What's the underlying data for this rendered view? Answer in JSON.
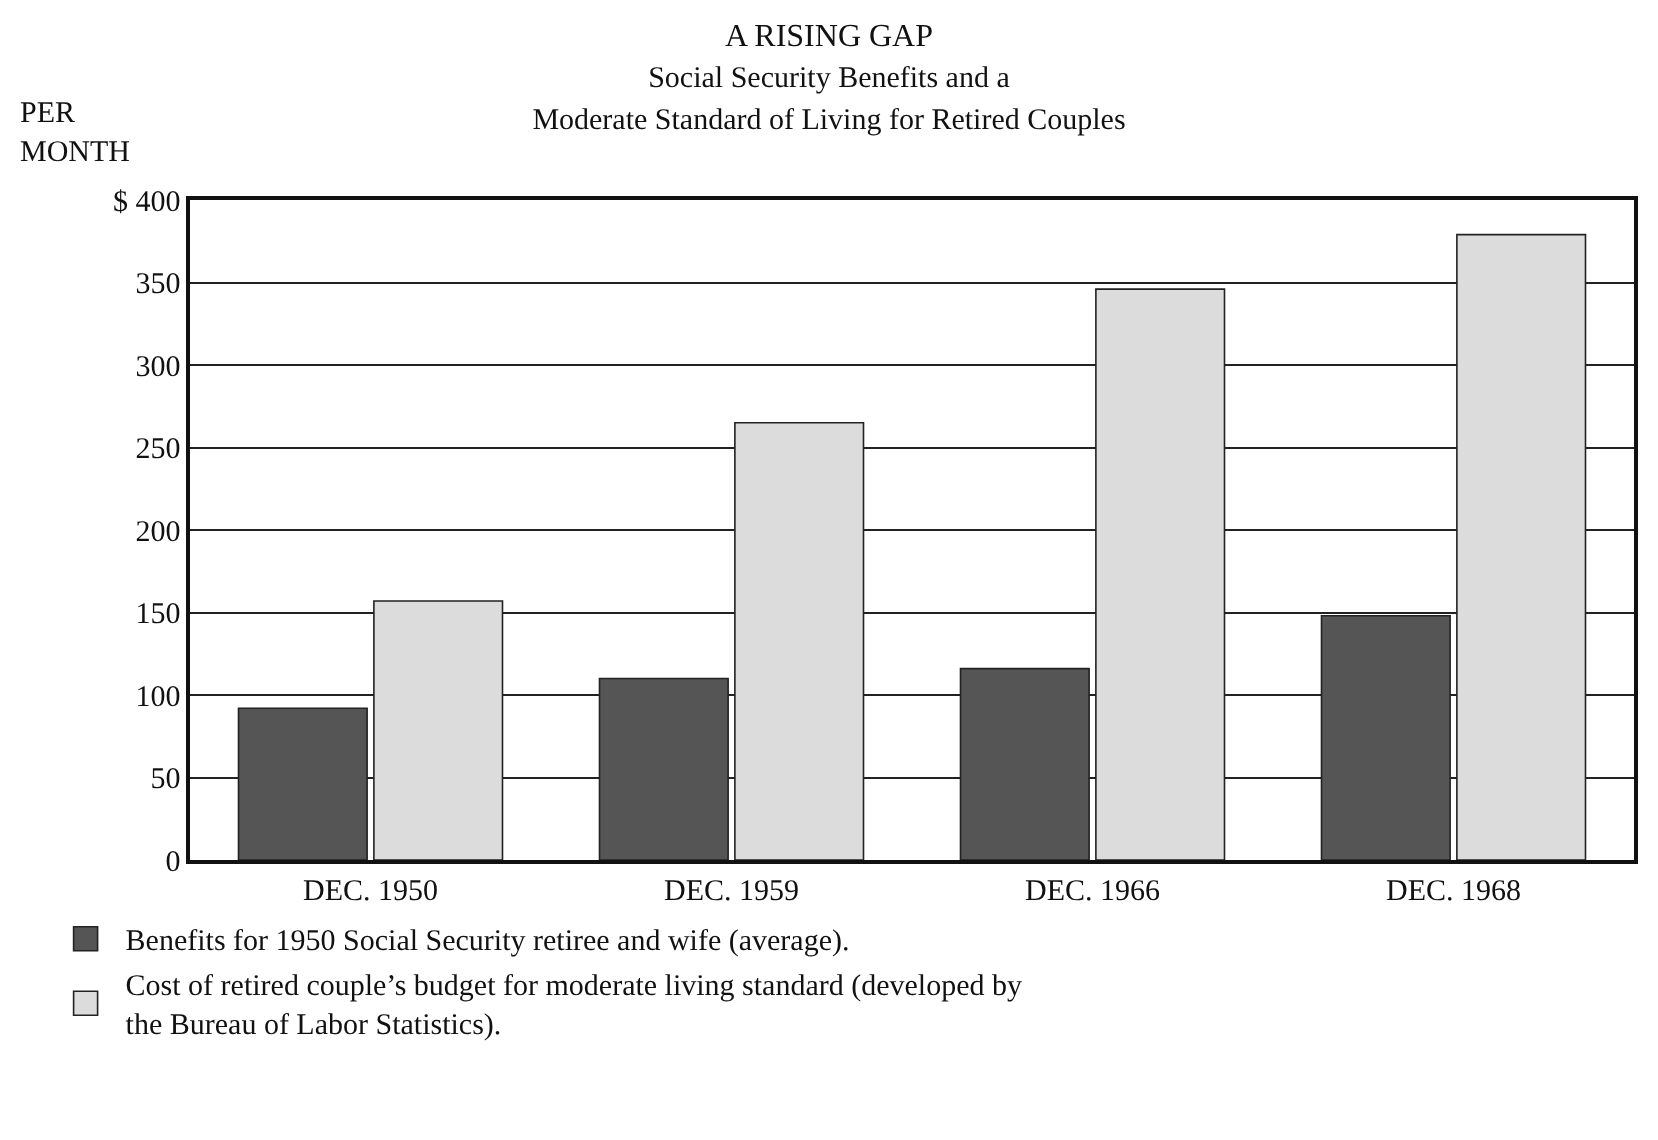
{
  "chart_data": {
    "type": "bar",
    "title": "A RISING GAP",
    "subtitle": "Social Security Benefits and a\nModerate Standard of Living for Retired Couples",
    "ylabel": "PER\nMONTH",
    "categories": [
      "DEC. 1950",
      "DEC. 1959",
      "DEC. 1966",
      "DEC. 1968"
    ],
    "series": [
      {
        "name": "Benefits for 1950 Social Security retiree and wife (average).",
        "color": "#555555",
        "values": [
          92,
          110,
          116,
          148
        ]
      },
      {
        "name": "Cost of retired couple’s budget for moderate living standard (developed by\nthe Bureau of Labor Statistics).",
        "color": "#dcdcdc",
        "values": [
          157,
          265,
          346,
          379
        ]
      }
    ],
    "ylim": [
      0,
      400
    ],
    "yticks": [
      0,
      50,
      100,
      150,
      200,
      250,
      300,
      350,
      {
        "value": 400,
        "label": "$ 400"
      }
    ],
    "grid": "y",
    "legend": "bottom"
  }
}
